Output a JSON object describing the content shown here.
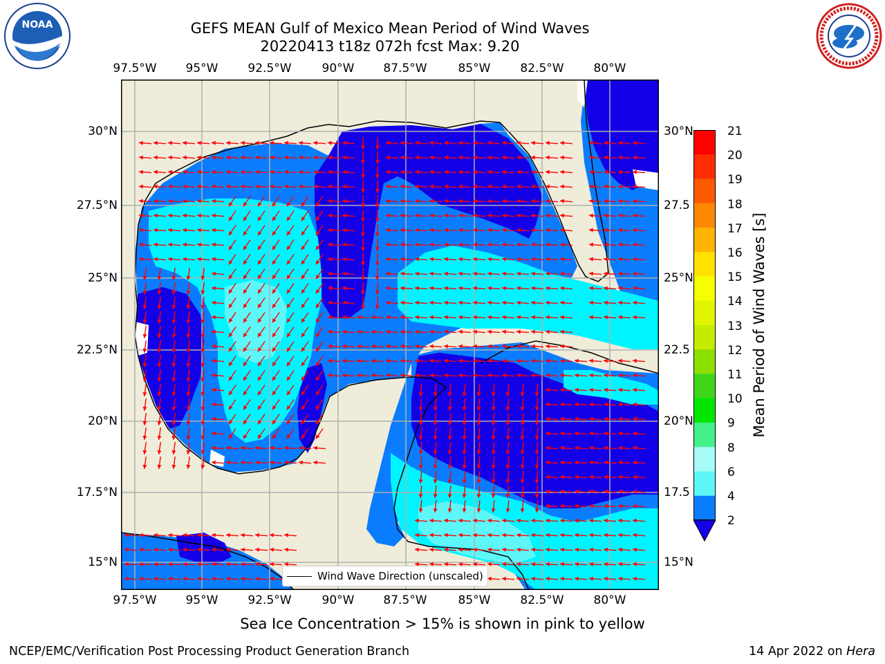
{
  "title": {
    "line1": "GEFS MEAN Gulf of Mexico Mean Period of Wind Waves",
    "line2": "20220413 t18z 072h fcst   Max: 9.20"
  },
  "logos": {
    "left": {
      "name": "noaa-logo",
      "text": "NOAA"
    },
    "right": {
      "name": "nws-logo"
    }
  },
  "axes": {
    "lon_ticks": [
      "97.5°W",
      "95°W",
      "92.5°W",
      "90°W",
      "87.5°W",
      "85°W",
      "82.5°W",
      "80°W"
    ],
    "lat_ticks_left": [
      "30°N",
      "27.5°N",
      "25°N",
      "22.5°N",
      "20°N",
      "17.5°N",
      "15°N"
    ],
    "lat_ticks_right": [
      "30°N",
      "27.5",
      "25°N",
      "22.5",
      "20°N",
      "17.5",
      "15°N"
    ]
  },
  "colorbar": {
    "label": "Mean Period of Wind Waves [s]",
    "ticks": [
      "21",
      "20",
      "19",
      "18",
      "17",
      "16",
      "15",
      "14",
      "13",
      "12",
      "11",
      "10",
      "9",
      "8",
      "6",
      "4",
      "2"
    ],
    "colors": [
      "#ff0000",
      "#ff2d00",
      "#ff5a00",
      "#ff8700",
      "#ffb400",
      "#ffe100",
      "#f5ff00",
      "#e0f500",
      "#c4ec00",
      "#8ce000",
      "#3fd61c",
      "#00e600",
      "#44f08a",
      "#a7fcf7",
      "#5ef7f8",
      "#00f4ff",
      "#0a7dff",
      "#1400e6"
    ]
  },
  "legend": {
    "label": "Wind Wave Direction (unscaled)"
  },
  "sea_ice_note": "Sea Ice Concentration > 15% is shown in pink to yellow",
  "footer": {
    "left": "NCEP/EMC/Verification Post Processing Product Generation Branch",
    "right_prefix": "14 Apr 2022 on ",
    "right_host": "Hera"
  }
}
